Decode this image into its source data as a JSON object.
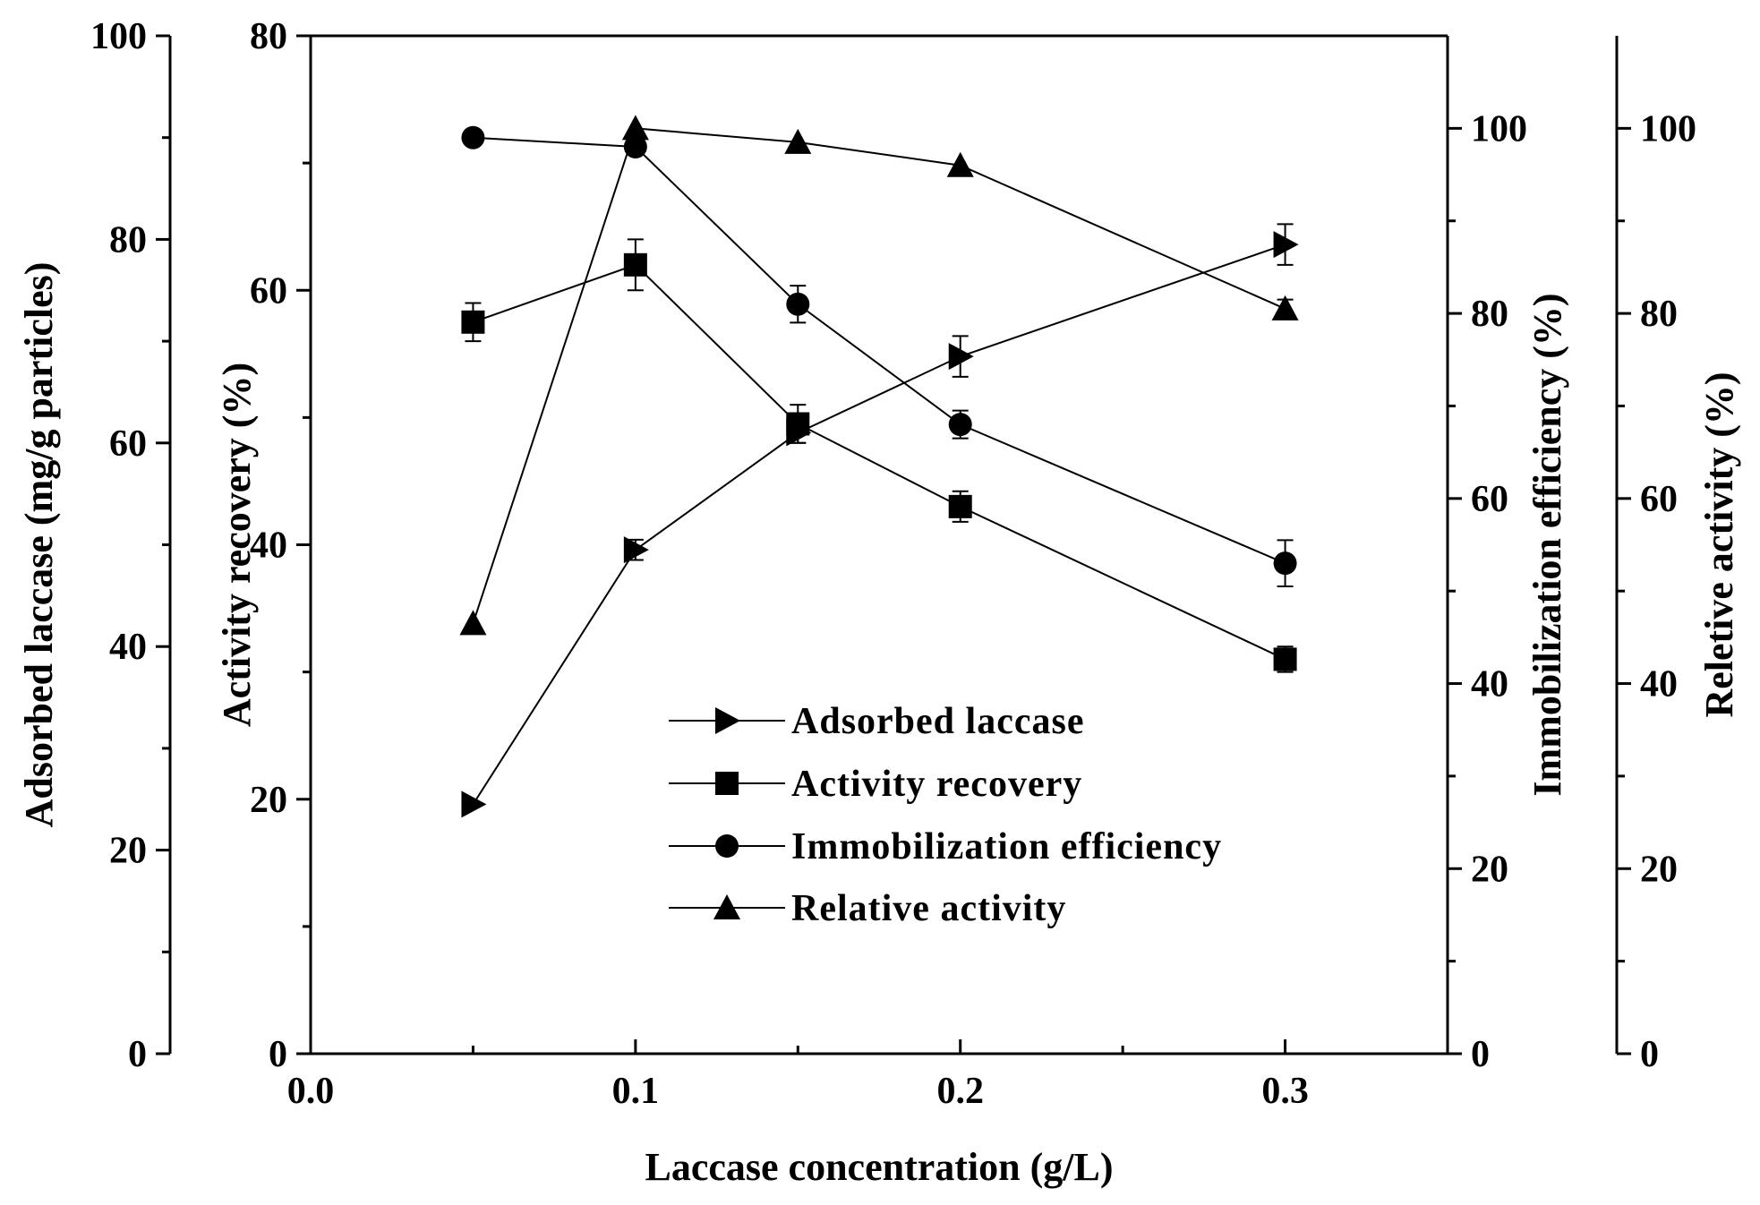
{
  "chart_data": {
    "type": "line",
    "xlabel": "Laccase concentration (g/L)",
    "x_ticks": [
      "0.0",
      "0.1",
      "0.2",
      "0.3"
    ],
    "xlim": [
      0,
      0.35
    ],
    "axes": [
      {
        "id": "adsorbed",
        "label": "Adsorbed laccase (mg/g particles)",
        "ylim": [
          0,
          100
        ],
        "ticks": [
          "0",
          "20",
          "40",
          "60",
          "80",
          "100"
        ],
        "side": "left-outer"
      },
      {
        "id": "recovery",
        "label": "Activity recovery (%)",
        "ylim": [
          0,
          80
        ],
        "ticks": [
          "0",
          "20",
          "40",
          "60",
          "80"
        ],
        "side": "left-inner"
      },
      {
        "id": "immobilization",
        "label": "Immobilization efficiency (%)",
        "ylim": [
          0,
          110
        ],
        "ticks": [
          "0",
          "20",
          "40",
          "60",
          "80",
          "100"
        ],
        "side": "right-inner"
      },
      {
        "id": "relative",
        "label": "Reletive activity (%)",
        "ylim": [
          0,
          110
        ],
        "ticks": [
          "0",
          "20",
          "40",
          "60",
          "80",
          "100"
        ],
        "side": "right-outer"
      }
    ],
    "series": [
      {
        "name": "Adsorbed laccase",
        "axis": "adsorbed",
        "marker": "triangle-right",
        "x": [
          0.05,
          0.1,
          0.15,
          0.2,
          0.3
        ],
        "y": [
          24.5,
          49.5,
          61,
          68.5,
          79.5
        ],
        "err": [
          0,
          1,
          1,
          2,
          2
        ]
      },
      {
        "name": "Activity recovery",
        "axis": "recovery",
        "marker": "square",
        "x": [
          0.05,
          0.1,
          0.15,
          0.2,
          0.3
        ],
        "y": [
          57.5,
          62,
          49.5,
          43,
          31
        ],
        "err": [
          1.5,
          2,
          1.5,
          1.2,
          1
        ]
      },
      {
        "name": "Immobilization efficiency",
        "axis": "immobilization",
        "marker": "circle",
        "x": [
          0.05,
          0.1,
          0.15,
          0.2,
          0.3
        ],
        "y": [
          99,
          98,
          81,
          68,
          53
        ],
        "err": [
          0,
          0,
          2,
          1.5,
          2.5
        ]
      },
      {
        "name": "Relative activity",
        "axis": "relative",
        "marker": "triangle-up",
        "x": [
          0.05,
          0.1,
          0.15,
          0.2,
          0.3
        ],
        "y": [
          46.5,
          100,
          98.5,
          96,
          80.5
        ],
        "err": [
          0,
          0,
          0,
          0,
          1
        ]
      }
    ],
    "legend": "center"
  }
}
